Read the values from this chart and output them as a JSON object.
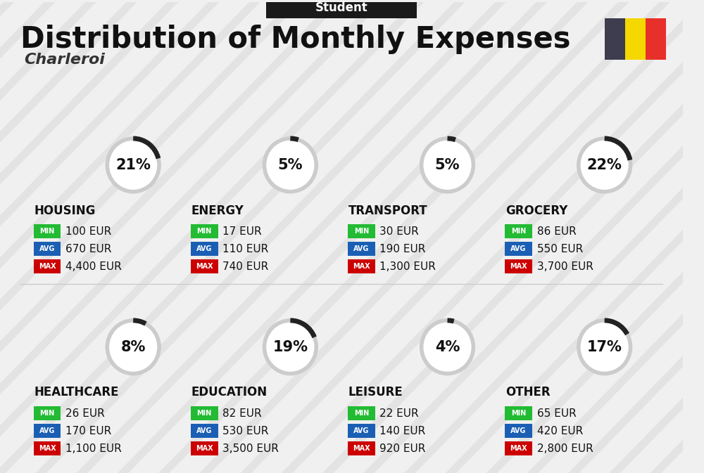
{
  "title": "Distribution of Monthly Expenses",
  "subtitle": "Student",
  "city": "Charleroi",
  "bg_color": "#f0f0f0",
  "categories": [
    {
      "name": "HOUSING",
      "pct": 21,
      "min": "100 EUR",
      "avg": "670 EUR",
      "max": "4,400 EUR",
      "row": 0,
      "col": 0
    },
    {
      "name": "ENERGY",
      "pct": 5,
      "min": "17 EUR",
      "avg": "110 EUR",
      "max": "740 EUR",
      "row": 0,
      "col": 1
    },
    {
      "name": "TRANSPORT",
      "pct": 5,
      "min": "30 EUR",
      "avg": "190 EUR",
      "max": "1,300 EUR",
      "row": 0,
      "col": 2
    },
    {
      "name": "GROCERY",
      "pct": 22,
      "min": "86 EUR",
      "avg": "550 EUR",
      "max": "3,700 EUR",
      "row": 0,
      "col": 3
    },
    {
      "name": "HEALTHCARE",
      "pct": 8,
      "min": "26 EUR",
      "avg": "170 EUR",
      "max": "1,100 EUR",
      "row": 1,
      "col": 0
    },
    {
      "name": "EDUCATION",
      "pct": 19,
      "min": "82 EUR",
      "avg": "530 EUR",
      "max": "3,500 EUR",
      "row": 1,
      "col": 1
    },
    {
      "name": "LEISURE",
      "pct": 4,
      "min": "22 EUR",
      "avg": "140 EUR",
      "max": "920 EUR",
      "row": 1,
      "col": 2
    },
    {
      "name": "OTHER",
      "pct": 17,
      "min": "65 EUR",
      "avg": "420 EUR",
      "max": "2,800 EUR",
      "row": 1,
      "col": 3
    }
  ],
  "min_color": "#22bb33",
  "avg_color": "#1a5fb4",
  "max_color": "#cc0000",
  "label_color": "#ffffff",
  "category_color": "#111111",
  "pct_color": "#111111",
  "circle_color": "#cccccc",
  "circle_fill": "#ffffff",
  "flag_colors": [
    "#3d3d4f",
    "#f5d800",
    "#e8302a"
  ],
  "title_color": "#111111",
  "subtitle_bg": "#1a1a1a",
  "subtitle_color": "#ffffff",
  "city_color": "#333333"
}
